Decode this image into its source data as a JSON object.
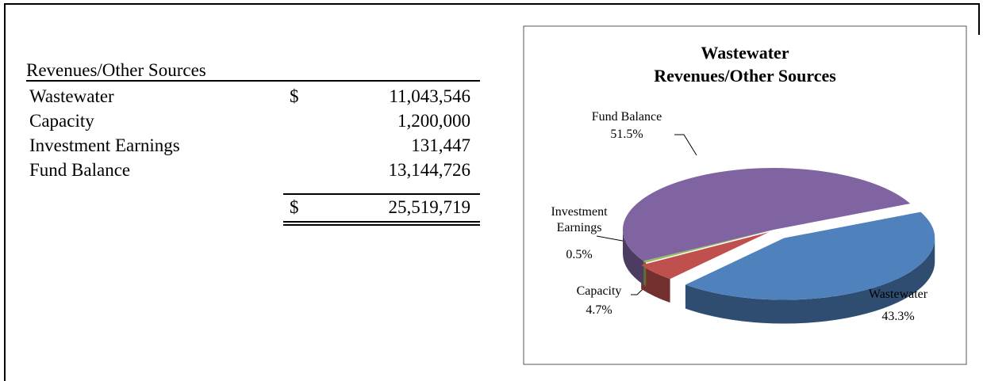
{
  "table": {
    "title": "Revenues/Other Sources",
    "rows": [
      {
        "label": "Wastewater",
        "currency": "$",
        "amount": "11,043,546"
      },
      {
        "label": "Capacity",
        "amount": "1,200,000"
      },
      {
        "label": "Investment Earnings",
        "amount": "131,447"
      },
      {
        "label": "Fund Balance",
        "amount": "13,144,726"
      }
    ],
    "total": {
      "currency": "$",
      "amount": "25,519,719"
    }
  },
  "chart_data": {
    "type": "pie",
    "title": [
      "Wastewater",
      "Revenues/Other Sources"
    ],
    "categories": [
      "Wastewater",
      "Capacity",
      "Investment Earnings",
      "Fund Balance"
    ],
    "values": [
      43.3,
      4.7,
      0.5,
      51.5
    ],
    "value_labels": [
      "43.3%",
      "4.7%",
      "0.5%",
      "51.5%"
    ],
    "colors": [
      "#4f81bd",
      "#c0504d",
      "#9bbb59",
      "#8064a2"
    ]
  }
}
